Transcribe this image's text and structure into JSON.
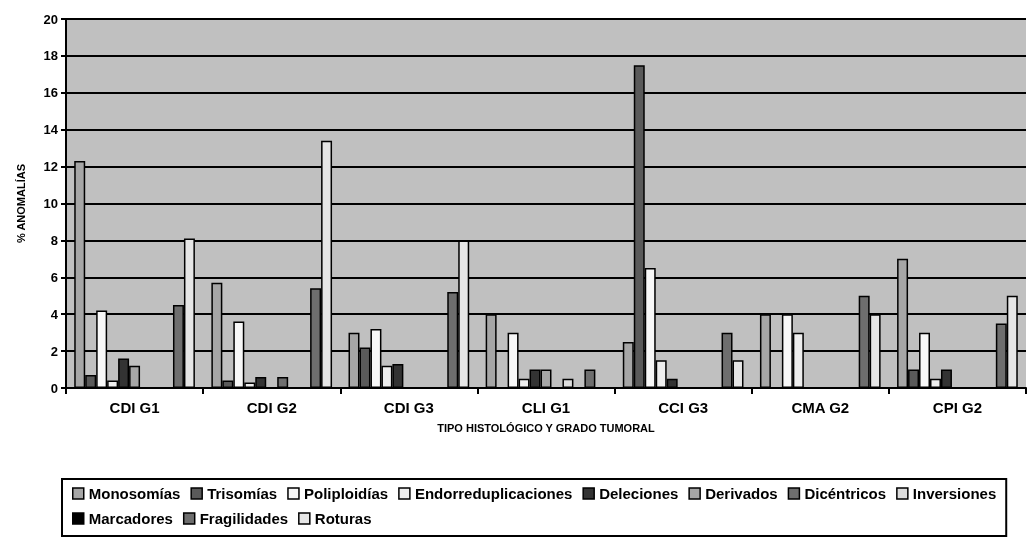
{
  "chart_data": {
    "type": "bar",
    "xlabel": "TIPO HISTOLÓGICO Y GRADO TUMORAL",
    "ylabel": "% ANOMALÍAS",
    "categories": [
      "CDI G1",
      "CDI G2",
      "CDI G3",
      "CLI G1",
      "CCI G3",
      "CMA G2",
      "CPI G2"
    ],
    "series": [
      {
        "name": "Monosomías",
        "color": "#a6a6a6",
        "values": [
          12.3,
          5.7,
          3.0,
          4.0,
          2.5,
          4.0,
          7.0
        ]
      },
      {
        "name": "Trisomías",
        "color": "#5a5a5a",
        "values": [
          0.7,
          0.4,
          2.2,
          0,
          17.5,
          0,
          1.0
        ]
      },
      {
        "name": "Poliploidías",
        "color": "#f8f8f8",
        "values": [
          4.2,
          3.6,
          3.2,
          3.0,
          6.5,
          4.0,
          3.0
        ]
      },
      {
        "name": "Endorreduplicaciones",
        "color": "#eeeeee",
        "values": [
          0.4,
          0.3,
          1.2,
          0.5,
          1.5,
          3.0,
          0.5
        ]
      },
      {
        "name": "Deleciones",
        "color": "#333333",
        "values": [
          1.6,
          0.6,
          1.3,
          1.0,
          0.5,
          0,
          1.0
        ]
      },
      {
        "name": "Derivados",
        "color": "#a6a6a6",
        "values": [
          1.2,
          0,
          0,
          1.0,
          0,
          0,
          0
        ]
      },
      {
        "name": "Dicéntricos",
        "color": "#6e6e6e",
        "values": [
          0,
          0.6,
          0,
          0,
          0,
          0,
          0
        ]
      },
      {
        "name": "Inversiones",
        "color": "#dddddd",
        "values": [
          0,
          0,
          0,
          0.5,
          0,
          0,
          0
        ]
      },
      {
        "name": "Marcadores",
        "color": "#000000",
        "values": [
          0,
          0,
          0,
          0,
          0,
          0,
          0
        ]
      },
      {
        "name": "Fragilidades",
        "color": "#6e6e6e",
        "values": [
          4.5,
          5.4,
          5.2,
          1.0,
          3.0,
          5.0,
          3.5
        ]
      },
      {
        "name": "Roturas",
        "color": "#e6e6e6",
        "values": [
          8.1,
          13.4,
          8.0,
          0,
          1.5,
          4.0,
          5.0
        ]
      }
    ],
    "ylim": [
      0,
      20
    ],
    "yticks": [
      0,
      2,
      4,
      6,
      8,
      10,
      12,
      14,
      16,
      18,
      20
    ],
    "grid": "y",
    "legend": "bottom"
  }
}
